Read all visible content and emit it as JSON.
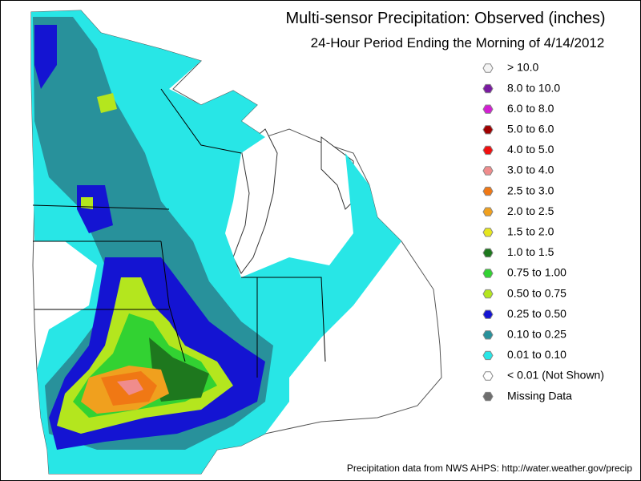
{
  "title": "Multi-sensor Precipitation: Observed (inches)",
  "subtitle": "24-Hour Period Ending the Morning of 4/14/2012",
  "legend": [
    {
      "label": "> 10.0",
      "color": "#f4f4f4"
    },
    {
      "label": "8.0 to 10.0",
      "color": "#7a1aa0"
    },
    {
      "label": "6.0 to 8.0",
      "color": "#d21ed2"
    },
    {
      "label": "5.0 to 6.0",
      "color": "#a00000"
    },
    {
      "label": "4.0 to 5.0",
      "color": "#f01010"
    },
    {
      "label": "3.0 to 4.0",
      "color": "#f08c8c"
    },
    {
      "label": "2.5 to 3.0",
      "color": "#f07814"
    },
    {
      "label": "2.0 to 2.5",
      "color": "#f0a01e"
    },
    {
      "label": "1.5 to 2.0",
      "color": "#e6e61e"
    },
    {
      "label": "1.0 to 1.5",
      "color": "#1e781e"
    },
    {
      "label": "0.75 to 1.00",
      "color": "#32d232"
    },
    {
      "label": "0.50 to 0.75",
      "color": "#b4e61e"
    },
    {
      "label": "0.25 to 0.50",
      "color": "#1414d2"
    },
    {
      "label": "0.10 to 0.25",
      "color": "#28919b"
    },
    {
      "label": "0.01 to 0.10",
      "color": "#28e6e6"
    },
    {
      "label": "< 0.01 (Not Shown)",
      "color": "#ffffff"
    },
    {
      "label": "Missing Data",
      "color": "#6e6e6e"
    }
  ],
  "credit": "Precipitation data from NWS AHPS:  http://water.weather.gov/precip"
}
